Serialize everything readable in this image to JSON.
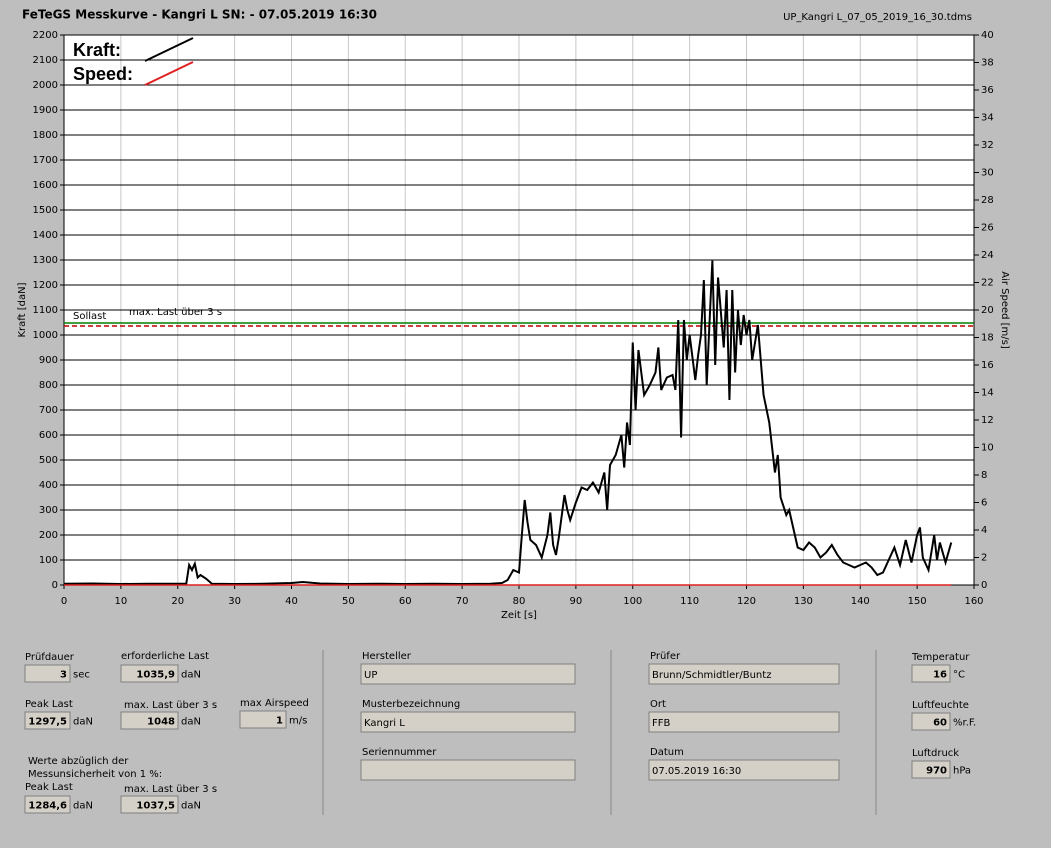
{
  "header": {
    "title": "FeTeGS Messkurve - Kangri L  SN:  - 07.05.2019 16:30",
    "file": "UP_Kangri L_07_05_2019_16_30.tdms"
  },
  "chart_data": {
    "type": "line",
    "x_label": "Zeit [s]",
    "y_label": "Kraft [daN]",
    "y2_label": "Air Speed [m/s]",
    "xlim": [
      0,
      160
    ],
    "xticks": [
      0,
      10,
      20,
      30,
      40,
      50,
      60,
      70,
      80,
      90,
      100,
      110,
      120,
      130,
      140,
      150,
      160
    ],
    "ylim": [
      0,
      2200
    ],
    "yticks": [
      0,
      100,
      200,
      300,
      400,
      500,
      600,
      700,
      800,
      900,
      1000,
      1100,
      1200,
      1300,
      1400,
      1500,
      1600,
      1700,
      1800,
      1900,
      2000,
      2100,
      2200
    ],
    "y2lim": [
      0,
      40
    ],
    "y2ticks": [
      0,
      2,
      4,
      6,
      8,
      10,
      12,
      14,
      16,
      18,
      20,
      22,
      24,
      26,
      28,
      30,
      32,
      34,
      36,
      38,
      40
    ],
    "grid": true,
    "legend": "upper-left",
    "ref_lines": [
      {
        "label": "Sollast",
        "value": 1035.9,
        "color": "#c00000",
        "dashed": true
      },
      {
        "label": "max. Last über  3 s",
        "value": 1048,
        "color": "#008000",
        "dashed": false
      }
    ],
    "series": [
      {
        "name": "Kraft:",
        "color": "#000000",
        "x": [
          0,
          5,
          10,
          15,
          20,
          21.5,
          22,
          22.5,
          23,
          23.5,
          24,
          25,
          26,
          30,
          35,
          40,
          42,
          45,
          50,
          55,
          60,
          65,
          70,
          75,
          77,
          78,
          79,
          80,
          80.5,
          81,
          81.5,
          82,
          83,
          84,
          85,
          85.5,
          86,
          86.5,
          87,
          88,
          88.5,
          89,
          90,
          91,
          92,
          93,
          94,
          95,
          95.5,
          96,
          97,
          98,
          98.5,
          99,
          99.5,
          100,
          100.5,
          101,
          102,
          103,
          104,
          104.5,
          105,
          106,
          107,
          107.5,
          108,
          108.5,
          109,
          109.5,
          110,
          111,
          111.5,
          112,
          112.5,
          113,
          113.5,
          114,
          114.5,
          115,
          116,
          116.5,
          117,
          117.5,
          118,
          118.5,
          119,
          119.5,
          120,
          120.5,
          121,
          122,
          123,
          124,
          125,
          125.5,
          126,
          127,
          127.5,
          128,
          129,
          130,
          131,
          132,
          133,
          134,
          135,
          136,
          137,
          138,
          139,
          140,
          141,
          142,
          143,
          144,
          145,
          146,
          147,
          148,
          149,
          150,
          150.5,
          151,
          152,
          153,
          153.5,
          154,
          155,
          156
        ],
        "values": [
          5,
          6,
          4,
          5,
          5,
          5,
          80,
          60,
          85,
          30,
          40,
          25,
          5,
          4,
          5,
          8,
          12,
          6,
          4,
          5,
          4,
          5,
          4,
          5,
          8,
          20,
          60,
          50,
          200,
          340,
          250,
          180,
          160,
          110,
          200,
          290,
          160,
          120,
          190,
          360,
          300,
          260,
          330,
          390,
          380,
          410,
          370,
          450,
          300,
          480,
          520,
          600,
          470,
          650,
          560,
          970,
          700,
          940,
          760,
          800,
          850,
          950,
          780,
          830,
          840,
          780,
          1060,
          590,
          1060,
          900,
          1000,
          820,
          920,
          1000,
          1220,
          800,
          1050,
          1297.5,
          880,
          1230,
          950,
          1180,
          740,
          1180,
          850,
          1100,
          960,
          1080,
          1000,
          1060,
          900,
          1040,
          760,
          650,
          450,
          520,
          350,
          280,
          300,
          250,
          150,
          140,
          170,
          150,
          110,
          130,
          160,
          120,
          90,
          80,
          70,
          80,
          90,
          70,
          40,
          50,
          100,
          150,
          80,
          180,
          90,
          200,
          230,
          110,
          60,
          200,
          100,
          170,
          90,
          170
        ]
      },
      {
        "name": "Speed:",
        "color": "#e02020",
        "axis": "y2",
        "x": [
          0,
          156
        ],
        "values": [
          0,
          0
        ]
      }
    ]
  },
  "form": {
    "fields": [
      {
        "label": "Prüfdauer",
        "value": "3",
        "unit": "sec"
      },
      {
        "label": "erforderliche Last",
        "value": "1035,9",
        "unit": "daN"
      },
      {
        "label": "Peak Last",
        "value": "1297,5",
        "unit": "daN"
      },
      {
        "label": "max. Last über  3 s",
        "value": "1048",
        "unit": "daN"
      },
      {
        "label": "max Airspeed",
        "value": "1",
        "unit": "m/s"
      },
      {
        "label": "Peak Last",
        "value": "1284,6",
        "unit": "daN"
      },
      {
        "label": "max. Last über  3 s",
        "value": "1037,5",
        "unit": "daN"
      },
      {
        "label": "Hersteller",
        "value": "UP"
      },
      {
        "label": "Musterbezeichnung",
        "value": "Kangri L"
      },
      {
        "label": "Seriennummer"
      },
      {
        "label": "Prüfer",
        "value": "Brunn/Schmidtler/Buntz"
      },
      {
        "label": "Ort",
        "value": "FFB"
      },
      {
        "label": "Datum",
        "value": "07.05.2019 16:30"
      },
      {
        "label": "Temperatur",
        "value": "16",
        "unit": "°C"
      },
      {
        "label": "Luftfeuchte",
        "value": "60",
        "unit": "%r.F."
      },
      {
        "label": "Luftdruck",
        "value": "970",
        "unit": "hPa"
      }
    ],
    "note": [
      "Werte abzüglich der",
      "Messunsicherheit von 1  %:"
    ]
  }
}
